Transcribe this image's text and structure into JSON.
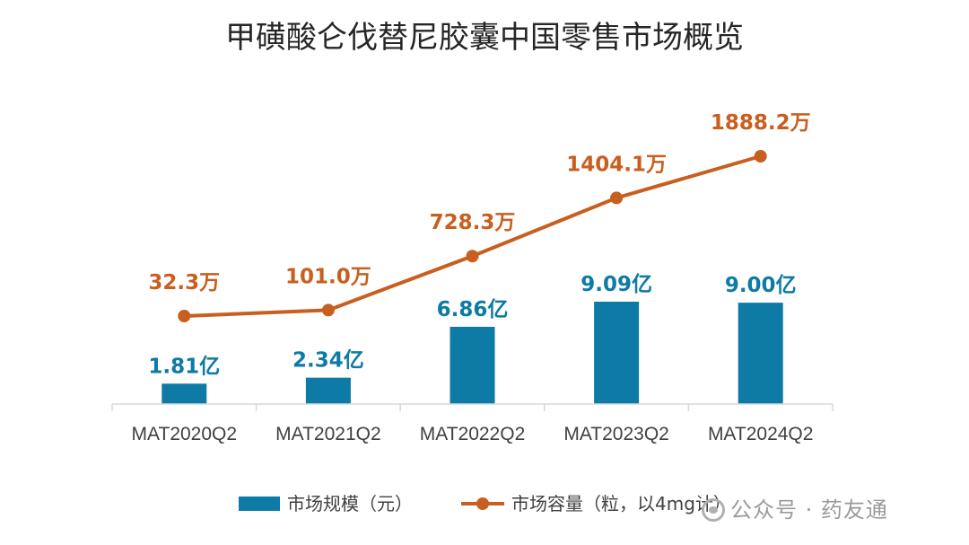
{
  "chart_data": {
    "type": "bar+line",
    "title": "甲磺酸仑伐替尼胶囊中国零售市场概览",
    "categories": [
      "MAT2020Q2",
      "MAT2021Q2",
      "MAT2022Q2",
      "MAT2023Q2",
      "MAT2024Q2"
    ],
    "series": [
      {
        "name": "市场规模（元）",
        "type": "bar",
        "unit": "亿",
        "values": [
          1.81,
          2.34,
          6.86,
          9.09,
          9.0
        ],
        "labels": [
          "1.81亿",
          "2.34亿",
          "6.86亿",
          "9.09亿",
          "9.00亿"
        ],
        "color": "#0e7aa6"
      },
      {
        "name": "市场容量（粒，以4mg计）",
        "type": "line",
        "unit": "万",
        "values": [
          32.3,
          101.0,
          728.3,
          1404.1,
          1888.2
        ],
        "labels": [
          "32.3万",
          "101.0万",
          "728.3万",
          "1404.1万",
          "1888.2万"
        ],
        "color": "#c85f1e"
      }
    ],
    "legend_position": "bottom",
    "grid": false
  },
  "watermark": "公众号 · 药友通"
}
